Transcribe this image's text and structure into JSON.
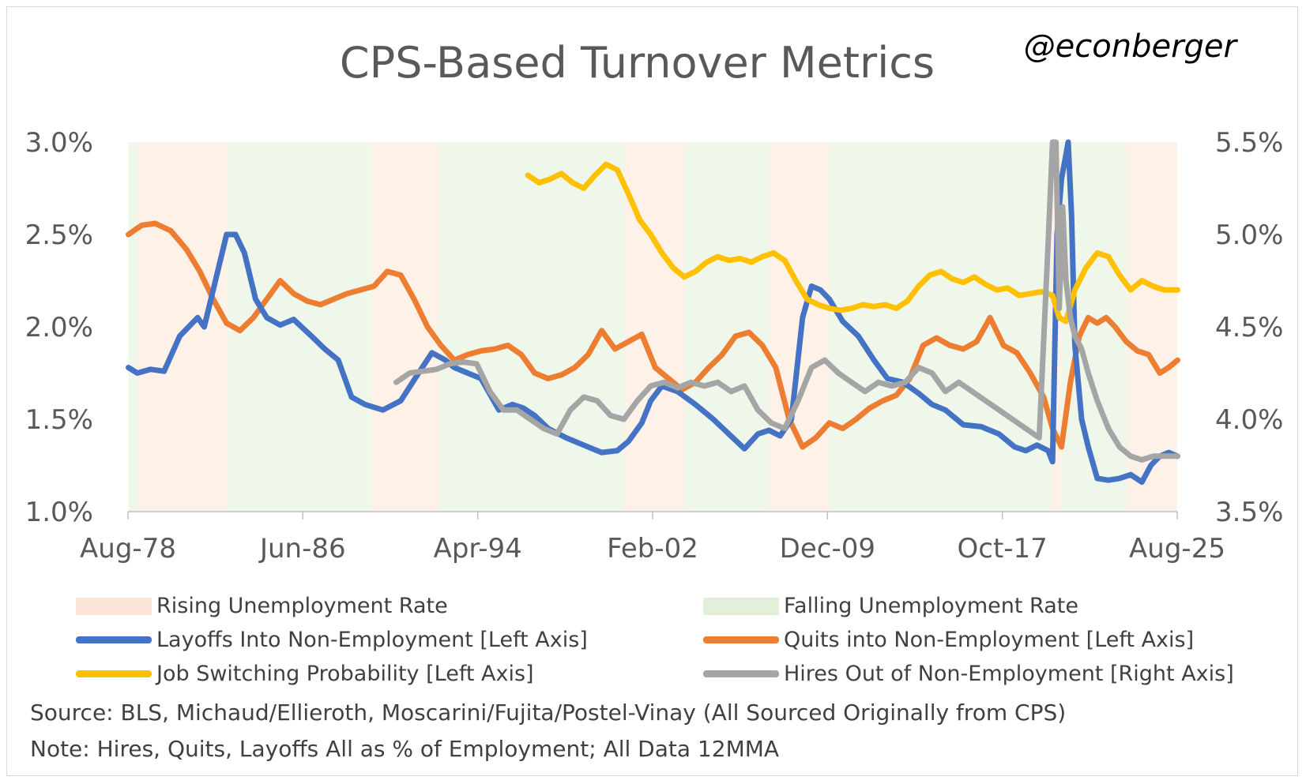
{
  "header": {
    "title": "CPS-Based Turnover Metrics",
    "handle": "@econberger"
  },
  "notes": {
    "source": "Source: BLS, Michaud/Ellieroth, Moscarini/Fujita/Postel-Vinay (All Sourced Originally from CPS)",
    "note": "Note: Hires, Quits, Layoffs All as % of Employment; All Data 12MMA"
  },
  "legend": {
    "rising": "Rising Unemployment Rate",
    "falling": "Falling Unemployment Rate",
    "layoffs": "Layoffs Into Non-Employment [Left Axis]",
    "quits": "Quits into Non-Employment [Left Axis]",
    "switching": "Job Switching Probability [Left Axis]",
    "hires": "Hires Out of Non-Employment [Right Axis]"
  },
  "colors": {
    "layoffs": "#4472c4",
    "quits": "#ed7d31",
    "switching": "#ffc000",
    "hires": "#a5a5a5",
    "rising": "#fbe5d6",
    "falling": "#e2f0d9"
  },
  "chart_data": {
    "type": "line",
    "x_ticks": [
      "Aug-78",
      "Jun-86",
      "Apr-94",
      "Feb-02",
      "Dec-09",
      "Oct-17",
      "Aug-25"
    ],
    "x_range": [
      "1978-08",
      "2025-08"
    ],
    "y_left": {
      "ticks": [
        "1.0%",
        "1.5%",
        "2.0%",
        "2.5%",
        "3.0%"
      ],
      "range": [
        1.0,
        3.0
      ]
    },
    "y_right": {
      "ticks": [
        "3.5%",
        "4.0%",
        "4.5%",
        "5.0%",
        "5.5%"
      ],
      "range": [
        3.5,
        5.5
      ]
    },
    "background_periods": {
      "rising": [
        [
          1979.0,
          1983.0
        ],
        [
          1989.5,
          1992.5
        ],
        [
          2000.8,
          2003.5
        ],
        [
          2007.3,
          2010.0
        ],
        [
          2019.9,
          2020.4
        ],
        [
          2023.3,
          2025.65
        ]
      ],
      "falling": [
        [
          1978.6,
          1979.0
        ],
        [
          1983.0,
          1989.5
        ],
        [
          1992.5,
          2000.8
        ],
        [
          2003.5,
          2007.3
        ],
        [
          2010.0,
          2019.9
        ],
        [
          2020.4,
          2023.3
        ]
      ]
    },
    "series": [
      {
        "name": "Layoffs Into Non-Employment [Left Axis]",
        "axis": "left",
        "x": [
          1978.6,
          1979.0,
          1979.6,
          1980.2,
          1980.9,
          1981.7,
          1982.0,
          1982.6,
          1983.0,
          1983.4,
          1983.8,
          1984.3,
          1984.8,
          1985.4,
          1986.0,
          1986.8,
          1987.4,
          1988.0,
          1988.6,
          1989.2,
          1990.0,
          1990.8,
          1991.6,
          1992.2,
          1992.8,
          1993.2,
          1993.8,
          1994.4,
          1995.2,
          1995.8,
          1996.3,
          1996.8,
          1997.4,
          1998.2,
          1999.0,
          1999.8,
          2000.5,
          2001.0,
          2001.6,
          2002.0,
          2002.5,
          2003.2,
          2004.0,
          2004.8,
          2005.5,
          2006.2,
          2006.8,
          2007.3,
          2007.8,
          2008.3,
          2008.8,
          2009.2,
          2009.6,
          2010.0,
          2010.6,
          2011.3,
          2012.0,
          2012.6,
          2013.3,
          2014.0,
          2014.6,
          2015.2,
          2016.0,
          2016.8,
          2017.6,
          2018.3,
          2018.8,
          2019.3,
          2019.8,
          2020.0,
          2020.2,
          2020.4,
          2020.55,
          2020.7,
          2020.85,
          2021.0,
          2021.3,
          2021.6,
          2022.0,
          2022.5,
          2023.0,
          2023.5,
          2024.0,
          2024.4,
          2024.8,
          2025.2,
          2025.6
        ],
        "values": [
          1.78,
          1.75,
          1.77,
          1.76,
          1.95,
          2.05,
          2.0,
          2.3,
          2.5,
          2.5,
          2.4,
          2.15,
          2.05,
          2.01,
          2.04,
          1.95,
          1.88,
          1.82,
          1.62,
          1.58,
          1.55,
          1.6,
          1.75,
          1.86,
          1.82,
          1.78,
          1.75,
          1.72,
          1.55,
          1.58,
          1.56,
          1.52,
          1.45,
          1.4,
          1.36,
          1.32,
          1.33,
          1.38,
          1.48,
          1.6,
          1.68,
          1.65,
          1.58,
          1.5,
          1.42,
          1.34,
          1.42,
          1.44,
          1.41,
          1.5,
          2.05,
          2.22,
          2.2,
          2.15,
          2.03,
          1.95,
          1.82,
          1.72,
          1.7,
          1.64,
          1.58,
          1.55,
          1.47,
          1.46,
          1.42,
          1.35,
          1.33,
          1.36,
          1.33,
          1.27,
          2.5,
          2.8,
          2.9,
          3.0,
          2.6,
          1.9,
          1.5,
          1.35,
          1.18,
          1.17,
          1.18,
          1.2,
          1.16,
          1.25,
          1.3,
          1.32,
          1.3
        ]
      },
      {
        "name": "Quits into Non-Employment [Left Axis]",
        "axis": "left",
        "x": [
          1978.6,
          1979.2,
          1979.8,
          1980.5,
          1981.2,
          1981.8,
          1982.4,
          1983.0,
          1983.6,
          1984.2,
          1984.8,
          1985.4,
          1986.0,
          1986.6,
          1987.2,
          1987.8,
          1988.4,
          1989.0,
          1989.6,
          1990.2,
          1990.8,
          1991.4,
          1992.0,
          1992.6,
          1993.2,
          1993.8,
          1994.4,
          1995.0,
          1995.6,
          1996.2,
          1996.8,
          1997.4,
          1998.0,
          1998.6,
          1999.2,
          1999.8,
          2000.4,
          2001.0,
          2001.6,
          2002.2,
          2002.8,
          2003.4,
          2004.0,
          2004.6,
          2005.2,
          2005.8,
          2006.4,
          2007.0,
          2007.6,
          2008.2,
          2008.8,
          2009.4,
          2010.0,
          2010.6,
          2011.2,
          2011.8,
          2012.4,
          2013.0,
          2013.6,
          2014.2,
          2014.8,
          2015.4,
          2016.0,
          2016.6,
          2017.2,
          2017.8,
          2018.4,
          2019.0,
          2019.6,
          2020.0,
          2020.4,
          2020.8,
          2021.2,
          2021.6,
          2022.0,
          2022.4,
          2022.8,
          2023.3,
          2023.8,
          2024.3,
          2024.8,
          2025.2,
          2025.6
        ],
        "values": [
          2.5,
          2.55,
          2.56,
          2.52,
          2.42,
          2.3,
          2.15,
          2.02,
          1.98,
          2.05,
          2.15,
          2.25,
          2.18,
          2.14,
          2.12,
          2.15,
          2.18,
          2.2,
          2.22,
          2.3,
          2.28,
          2.15,
          2.0,
          1.9,
          1.82,
          1.85,
          1.87,
          1.88,
          1.9,
          1.85,
          1.75,
          1.72,
          1.74,
          1.78,
          1.85,
          1.98,
          1.88,
          1.92,
          1.96,
          1.78,
          1.72,
          1.66,
          1.7,
          1.78,
          1.85,
          1.95,
          1.97,
          1.9,
          1.78,
          1.5,
          1.35,
          1.4,
          1.48,
          1.45,
          1.5,
          1.56,
          1.6,
          1.63,
          1.72,
          1.9,
          1.94,
          1.9,
          1.88,
          1.92,
          2.05,
          1.9,
          1.86,
          1.75,
          1.62,
          1.45,
          1.35,
          1.7,
          1.95,
          2.05,
          2.02,
          2.05,
          2.0,
          1.92,
          1.87,
          1.85,
          1.75,
          1.78,
          1.82
        ]
      },
      {
        "name": "Job Switching Probability [Left Axis]",
        "axis": "left",
        "x": [
          1996.5,
          1997.0,
          1997.5,
          1998.0,
          1998.5,
          1999.0,
          1999.5,
          2000.0,
          2000.5,
          2001.0,
          2001.5,
          2002.0,
          2002.5,
          2003.0,
          2003.5,
          2004.0,
          2004.5,
          2005.0,
          2005.5,
          2006.0,
          2006.5,
          2007.0,
          2007.5,
          2008.0,
          2008.5,
          2009.0,
          2009.5,
          2010.0,
          2010.5,
          2011.0,
          2011.5,
          2012.0,
          2012.5,
          2013.0,
          2013.5,
          2014.0,
          2014.5,
          2015.0,
          2015.5,
          2016.0,
          2016.5,
          2017.0,
          2017.5,
          2018.0,
          2018.5,
          2019.0,
          2019.5,
          2020.0,
          2020.3,
          2020.6,
          2021.0,
          2021.5,
          2022.0,
          2022.5,
          2023.0,
          2023.5,
          2024.0,
          2024.5,
          2025.0,
          2025.6
        ],
        "values": [
          2.82,
          2.78,
          2.8,
          2.83,
          2.78,
          2.75,
          2.82,
          2.88,
          2.85,
          2.72,
          2.58,
          2.5,
          2.4,
          2.32,
          2.27,
          2.3,
          2.35,
          2.38,
          2.36,
          2.37,
          2.35,
          2.38,
          2.4,
          2.36,
          2.25,
          2.15,
          2.12,
          2.1,
          2.09,
          2.1,
          2.12,
          2.11,
          2.12,
          2.1,
          2.14,
          2.22,
          2.28,
          2.3,
          2.26,
          2.24,
          2.27,
          2.23,
          2.2,
          2.21,
          2.17,
          2.18,
          2.19,
          2.17,
          2.05,
          2.03,
          2.2,
          2.32,
          2.4,
          2.38,
          2.28,
          2.2,
          2.25,
          2.22,
          2.2,
          2.2
        ]
      },
      {
        "name": "Hires Out of Non-Employment [Right Axis]",
        "axis": "right",
        "x": [
          1990.6,
          1991.2,
          1991.8,
          1992.4,
          1993.0,
          1993.6,
          1994.2,
          1994.8,
          1995.4,
          1996.0,
          1996.6,
          1997.2,
          1997.8,
          1998.4,
          1999.0,
          1999.6,
          2000.2,
          2000.8,
          2001.4,
          2002.0,
          2002.6,
          2003.2,
          2003.8,
          2004.4,
          2005.0,
          2005.6,
          2006.2,
          2006.8,
          2007.4,
          2008.0,
          2008.6,
          2009.2,
          2009.8,
          2010.4,
          2011.0,
          2011.6,
          2012.2,
          2012.8,
          2013.4,
          2014.0,
          2014.6,
          2015.2,
          2015.8,
          2016.4,
          2017.0,
          2017.6,
          2018.2,
          2018.8,
          2019.4,
          2019.8,
          2020.0,
          2020.15,
          2020.3,
          2020.45,
          2020.6,
          2020.8,
          2021.0,
          2021.3,
          2021.6,
          2022.0,
          2022.5,
          2023.0,
          2023.5,
          2024.0,
          2024.5,
          2025.0,
          2025.6
        ],
        "values": [
          4.2,
          4.25,
          4.26,
          4.27,
          4.3,
          4.31,
          4.3,
          4.15,
          4.05,
          4.05,
          4.0,
          3.95,
          3.92,
          4.05,
          4.12,
          4.1,
          4.02,
          4.0,
          4.1,
          4.18,
          4.2,
          4.17,
          4.2,
          4.18,
          4.2,
          4.15,
          4.18,
          4.05,
          3.98,
          3.95,
          4.1,
          4.28,
          4.32,
          4.25,
          4.2,
          4.15,
          4.2,
          4.18,
          4.2,
          4.28,
          4.25,
          4.15,
          4.2,
          4.15,
          4.1,
          4.05,
          4.0,
          3.95,
          3.9,
          4.95,
          5.5,
          5.55,
          4.6,
          5.15,
          4.75,
          4.55,
          4.45,
          4.38,
          4.25,
          4.1,
          3.95,
          3.85,
          3.8,
          3.78,
          3.8,
          3.8,
          3.8
        ]
      }
    ]
  }
}
